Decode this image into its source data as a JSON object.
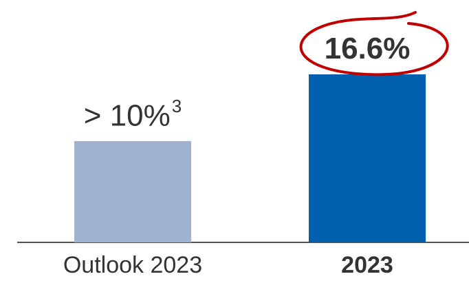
{
  "chart_data": {
    "type": "bar",
    "categories": [
      "Outlook 2023",
      "2023"
    ],
    "values": [
      10,
      16.6
    ],
    "value_labels": [
      {
        "text": "> 10%",
        "superscript": "3"
      },
      {
        "text": "16.6%",
        "superscript": ""
      }
    ],
    "bold_categories": [
      false,
      true
    ],
    "highlighted_index": 1,
    "colors": [
      "#9fb2cf",
      "#0060ae"
    ],
    "highlight_color": "#c00000",
    "axis_color": "#555555",
    "ylim": [
      0,
      20
    ],
    "grid": false,
    "title": "",
    "xlabel": "",
    "ylabel": ""
  }
}
